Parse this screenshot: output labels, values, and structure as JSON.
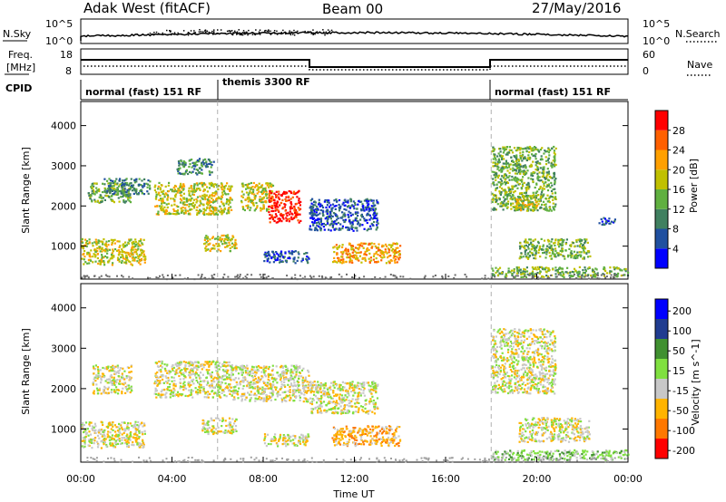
{
  "header": {
    "station": "Adak West (fitACF)",
    "beam": "Beam 00",
    "date": "27/May/2016"
  },
  "noise_panel": {
    "left_label": "N.Sky",
    "left_ticks": [
      "10^5",
      "10^0"
    ],
    "right_ticks": [
      "10^5",
      "10^0"
    ],
    "right_label": "N.Search"
  },
  "freq_panel": {
    "left_label_1": "Freq.",
    "left_label_2": "[MHz]",
    "left_ticks": [
      "18",
      "8"
    ],
    "right_ticks": [
      "60",
      "0"
    ],
    "right_label": "Nave"
  },
  "cpid": {
    "label": "CPID",
    "modes": [
      {
        "name": "normal (fast) 151 RF",
        "start_hour": 0,
        "end_hour": 6
      },
      {
        "name": "themis 3300 RF",
        "start_hour": 6,
        "end_hour": 18
      },
      {
        "name": "normal (fast) 151 RF",
        "start_hour": 18,
        "end_hour": 24
      }
    ]
  },
  "colors": {
    "power": [
      "#0000ff",
      "#2050a0",
      "#408060",
      "#60b040",
      "#c0c000",
      "#ffa000",
      "#ff6000",
      "#ff0000"
    ],
    "velocity": [
      "#ff0000",
      "#ff7800",
      "#ffb400",
      "#c8c8c8",
      "#80e040",
      "#409030",
      "#203c90",
      "#0000ff"
    ],
    "velocity_gray": "#c8c8c8",
    "axis": "#000000",
    "ground_scatter": "#a0a0a0"
  },
  "chart_data": [
    {
      "type": "heatmap",
      "name": "power",
      "x_ticks": [
        "00:00",
        "04:00",
        "08:00",
        "12:00",
        "16:00",
        "20:00",
        "00:00"
      ],
      "x_range_hours": [
        0,
        24
      ],
      "ylabel": "Slant Range [km]",
      "yticks": [
        1000,
        2000,
        3000,
        4000
      ],
      "ylim": [
        180,
        4600
      ],
      "colorbar": {
        "label": "Power [dB]",
        "ticks": [
          "28",
          "24",
          "20",
          "16",
          "12",
          "8",
          "4"
        ],
        "range": [
          0,
          30
        ]
      },
      "regions": [
        {
          "t0": 0.0,
          "t1": 2.8,
          "r0": 550,
          "r1": 1200,
          "level": 4
        },
        {
          "t0": 0.3,
          "t1": 2.2,
          "r0": 2100,
          "r1": 2600,
          "level": 3
        },
        {
          "t0": 1.0,
          "t1": 3.0,
          "r0": 2300,
          "r1": 2700,
          "level": 2
        },
        {
          "t0": 3.2,
          "t1": 6.6,
          "r0": 1800,
          "r1": 2600,
          "level": 4
        },
        {
          "t0": 4.2,
          "t1": 5.8,
          "r0": 2800,
          "r1": 3200,
          "level": 2
        },
        {
          "t0": 5.3,
          "t1": 6.8,
          "r0": 900,
          "r1": 1300,
          "level": 4
        },
        {
          "t0": 7.0,
          "t1": 8.4,
          "r0": 1900,
          "r1": 2600,
          "level": 4
        },
        {
          "t0": 8.2,
          "t1": 9.6,
          "r0": 1600,
          "r1": 2400,
          "level": 7
        },
        {
          "t0": 10.0,
          "t1": 13.0,
          "r0": 1400,
          "r1": 2200,
          "level": 1
        },
        {
          "t0": 11.0,
          "t1": 14.0,
          "r0": 600,
          "r1": 1100,
          "level": 5
        },
        {
          "t0": 8.0,
          "t1": 10.0,
          "r0": 600,
          "r1": 900,
          "level": 1
        },
        {
          "t0": 18.0,
          "t1": 20.8,
          "r0": 1900,
          "r1": 3500,
          "level": 3
        },
        {
          "t0": 19.0,
          "t1": 20.0,
          "r0": 1900,
          "r1": 2300,
          "level": 4
        },
        {
          "t0": 19.2,
          "t1": 22.3,
          "r0": 700,
          "r1": 1200,
          "level": 3
        },
        {
          "t0": 22.7,
          "t1": 23.4,
          "r0": 1550,
          "r1": 1750,
          "level": 1
        },
        {
          "t0": 18.0,
          "t1": 24.0,
          "r0": 250,
          "r1": 500,
          "level": 3
        }
      ]
    },
    {
      "type": "heatmap",
      "name": "velocity",
      "x_ticks": [
        "00:00",
        "04:00",
        "08:00",
        "12:00",
        "16:00",
        "20:00",
        "00:00"
      ],
      "x_range_hours": [
        0,
        24
      ],
      "xlabel": "Time UT",
      "ylabel": "Slant Range [km]",
      "yticks": [
        1000,
        2000,
        3000,
        4000
      ],
      "ylim": [
        180,
        4600
      ],
      "colorbar": {
        "label": "Velocity [m s^-1]",
        "ticks": [
          "200",
          "100",
          "50",
          "15",
          "-15",
          "-50",
          "-100",
          "-200"
        ],
        "range": [
          -250,
          250
        ]
      },
      "regions": [
        {
          "t0": 0.0,
          "t1": 2.8,
          "r0": 550,
          "r1": 1200,
          "level": 3
        },
        {
          "t0": 0.5,
          "t1": 2.2,
          "r0": 1900,
          "r1": 2600,
          "level": 3
        },
        {
          "t0": 3.2,
          "t1": 6.6,
          "r0": 1800,
          "r1": 2700,
          "level": 3
        },
        {
          "t0": 5.3,
          "t1": 6.8,
          "r0": 900,
          "r1": 1300,
          "level": 3
        },
        {
          "t0": 6.6,
          "t1": 10.0,
          "r0": 1700,
          "r1": 2600,
          "level": 3
        },
        {
          "t0": 10.0,
          "t1": 13.0,
          "r0": 1400,
          "r1": 2200,
          "level": 3
        },
        {
          "t0": 11.0,
          "t1": 14.0,
          "r0": 600,
          "r1": 1100,
          "level": 2
        },
        {
          "t0": 8.0,
          "t1": 10.0,
          "r0": 600,
          "r1": 900,
          "level": 3
        },
        {
          "t0": 18.0,
          "t1": 20.8,
          "r0": 1900,
          "r1": 3500,
          "level": 3
        },
        {
          "t0": 19.2,
          "t1": 22.3,
          "r0": 700,
          "r1": 1300,
          "level": 3
        },
        {
          "t0": 18.0,
          "t1": 24.0,
          "r0": 250,
          "r1": 500,
          "level": 4
        }
      ]
    }
  ]
}
